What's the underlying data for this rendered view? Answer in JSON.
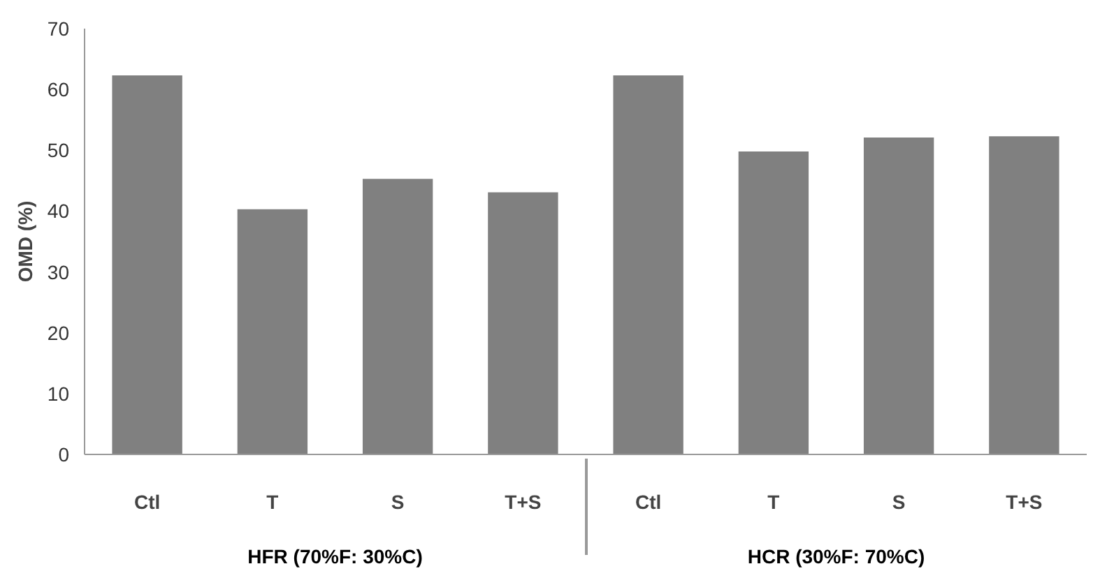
{
  "chart_data": {
    "type": "bar",
    "ylabel": "OMD (%)",
    "categories": [
      "Ctl",
      "T",
      "S",
      "T+S",
      "Ctl",
      "T",
      "S",
      "T+S"
    ],
    "values": [
      62.3,
      40.3,
      45.3,
      43.1,
      62.3,
      49.8,
      52.1,
      52.3
    ],
    "color": "#808080",
    "annotations": [
      "HFR (70%F: 30%C)",
      "HCR (30%F: 70%C)"
    ],
    "ylim": [
      0,
      70
    ],
    "yticks": [
      0,
      10,
      20,
      30,
      40,
      50,
      60,
      70
    ],
    "grid": false
  }
}
